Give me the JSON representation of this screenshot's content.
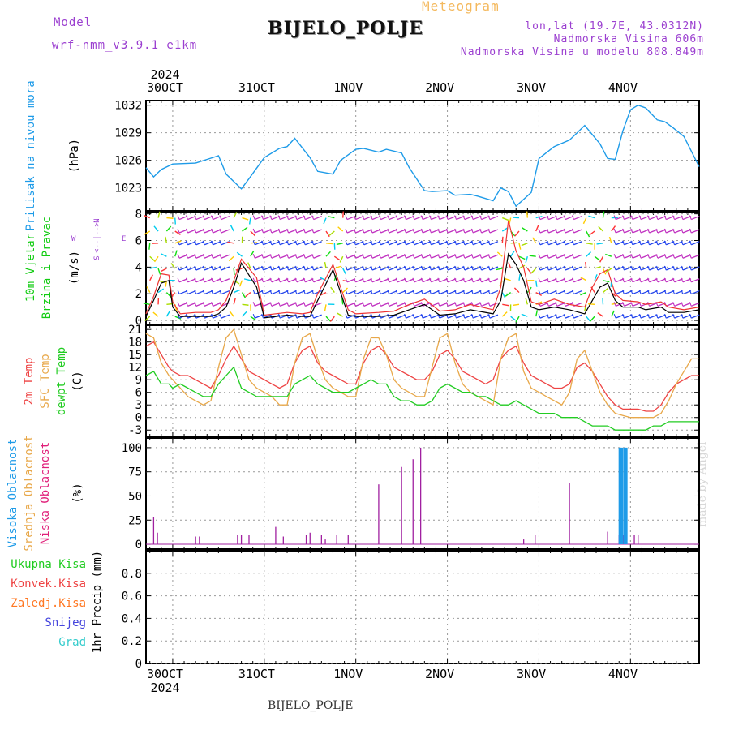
{
  "header": {
    "model_label": "Model",
    "model_name": "wrf-nmm_v3.9.1  e1km",
    "meteogram": "Meteogram",
    "station": "BIJELO_POLJE",
    "lonlat": "lon,lat (19.7E, 43.0312N)",
    "elevation": "Nadmorska Visina 606m",
    "model_elevation": "Nadmorska Visina u modelu 808.849m"
  },
  "footer_station": "BIJELO_POLJE",
  "credit": "made by Angel",
  "time_axis": {
    "year": "2024",
    "labels": [
      "30OCT",
      "31OCT",
      "1NOV",
      "2NOV",
      "3NOV",
      "4NOV"
    ],
    "day_start_hour": [
      0,
      24,
      48,
      72,
      96,
      120
    ],
    "range_hours": [
      -7,
      138
    ]
  },
  "colors": {
    "pressure": "#1e9be8",
    "temp2m": "#ee4444",
    "sfc": "#e8a84a",
    "dewpt": "#22cc22",
    "high_cloud": "#1e9be8",
    "low_cloud": "#a020a0",
    "snow": "#4444dd",
    "grad": "#33cccc",
    "purple": "#9b3fd0"
  },
  "panels": {
    "pressure": {
      "labels": [
        "Pritisak na nivou mora",
        "(hPa)"
      ],
      "ticks": [
        "1023",
        "1026",
        "1029",
        "1032"
      ]
    },
    "wind": {
      "labels": [
        "10m Vjetar",
        "Brzina i Pravac",
        "(m/s)"
      ],
      "compass": [
        "N",
        "W",
        "<--|-->",
        "E",
        "S"
      ],
      "ticks": [
        "0",
        "2",
        "4",
        "6",
        "8"
      ]
    },
    "temp": {
      "labels": [
        "2m Temp",
        "SFC Temp",
        "dewpt Temp",
        "(C)"
      ],
      "ticks": [
        "-3",
        "0",
        "3",
        "6",
        "9",
        "12",
        "15",
        "18",
        "21"
      ]
    },
    "cloud": {
      "labels": [
        "Visoka Oblacnost",
        "Srednja Oblacnost",
        "Niska Oblacnost",
        "(%)"
      ],
      "ticks": [
        "0",
        "25",
        "50",
        "75",
        "100"
      ]
    },
    "precip": {
      "legend": [
        "Ukupna Kisa",
        "Konvek.Kisa",
        "Zaledj.Kisa",
        "Snijeg",
        "Grad"
      ],
      "labels": [
        "1hr Precip",
        "(mm)"
      ],
      "ticks": [
        "0",
        "0.2",
        "0.4",
        "0.6",
        "0.8"
      ]
    }
  },
  "chart_data": [
    {
      "type": "line",
      "title": "Pritisak na nivou mora",
      "ylabel": "(hPa)",
      "ylim": [
        1020.5,
        1032.5
      ],
      "x_hours": [
        -7,
        -5,
        -3,
        0,
        6,
        12,
        14,
        18,
        20,
        24,
        28,
        30,
        32,
        36,
        38,
        42,
        44,
        48,
        50,
        54,
        56,
        60,
        62,
        66,
        68,
        72,
        74,
        78,
        80,
        84,
        86,
        88,
        90,
        94,
        96,
        100,
        104,
        106,
        108,
        112,
        114,
        116,
        118,
        120,
        122,
        124,
        127,
        129,
        131,
        134,
        138
      ],
      "values": [
        1025.2,
        1024.2,
        1025.0,
        1025.6,
        1025.7,
        1026.5,
        1024.5,
        1022.9,
        1024.0,
        1026.3,
        1027.3,
        1027.5,
        1028.4,
        1026.3,
        1024.8,
        1024.5,
        1026.0,
        1027.2,
        1027.3,
        1026.9,
        1027.2,
        1026.8,
        1025.2,
        1022.7,
        1022.6,
        1022.7,
        1022.2,
        1022.3,
        1022.1,
        1021.6,
        1023.0,
        1022.6,
        1021.0,
        1022.5,
        1026.2,
        1027.5,
        1028.2,
        1029.0,
        1029.8,
        1027.8,
        1026.2,
        1026.1,
        1029.2,
        1031.5,
        1032.0,
        1031.7,
        1030.4,
        1030.2,
        1029.6,
        1028.6,
        1025.3
      ]
    },
    {
      "type": "line",
      "title": "10m Vjetar Brzina i Pravac",
      "ylabel": "(m/s)",
      "ylim": [
        -0.3,
        8.1
      ],
      "x_hours": [
        -7,
        -5,
        -3,
        -1,
        0,
        2,
        6,
        10,
        12,
        14,
        16,
        18,
        22,
        24,
        30,
        34,
        36,
        38,
        42,
        46,
        48,
        54,
        58,
        62,
        66,
        70,
        74,
        78,
        84,
        86,
        88,
        90,
        92,
        94,
        96,
        100,
        104,
        108,
        110,
        112,
        114,
        116,
        118,
        122,
        124,
        128,
        130,
        134,
        138
      ],
      "series": [
        {
          "name": "mean",
          "values": [
            0.3,
            1.5,
            2.8,
            3.0,
            1.0,
            0.3,
            0.3,
            0.3,
            0.5,
            1.0,
            2.5,
            4.3,
            2.5,
            0.2,
            0.4,
            0.3,
            0.3,
            1.5,
            3.8,
            0.4,
            0.3,
            0.3,
            0.4,
            0.8,
            1.2,
            0.4,
            0.5,
            0.8,
            0.5,
            1.5,
            5.0,
            4.2,
            3.0,
            1.0,
            0.8,
            1.0,
            0.8,
            0.5,
            1.5,
            2.5,
            2.8,
            1.5,
            1.0,
            1.0,
            0.8,
            1.0,
            0.6,
            0.6,
            0.8
          ]
        },
        {
          "name": "gust",
          "values": [
            0.5,
            1.8,
            3.5,
            3.4,
            1.4,
            0.5,
            0.6,
            0.6,
            0.8,
            1.5,
            3.0,
            4.6,
            3.2,
            0.4,
            0.6,
            0.5,
            0.6,
            2.0,
            4.2,
            0.8,
            0.5,
            0.6,
            0.7,
            1.2,
            1.6,
            0.7,
            0.8,
            1.2,
            0.8,
            2.5,
            7.5,
            5.2,
            4.0,
            1.4,
            1.2,
            1.6,
            1.2,
            1.0,
            2.5,
            3.5,
            3.8,
            2.0,
            1.5,
            1.4,
            1.2,
            1.4,
            1.0,
            0.8,
            1.0
          ]
        }
      ],
      "barb_rows": [
        0.3,
        1.2,
        2.1,
        3.0,
        3.9,
        4.8,
        5.8,
        6.7,
        7.7
      ]
    },
    {
      "type": "line",
      "title": "2m Temp / SFC Temp / dewpt Temp",
      "ylabel": "(C)",
      "ylim": [
        -4.5,
        22
      ],
      "x_hours": [
        -7,
        -5,
        -3,
        -1,
        0,
        2,
        4,
        6,
        8,
        10,
        12,
        14,
        16,
        18,
        20,
        22,
        24,
        26,
        28,
        30,
        32,
        34,
        36,
        38,
        40,
        42,
        44,
        46,
        48,
        50,
        52,
        54,
        56,
        58,
        60,
        62,
        64,
        66,
        68,
        70,
        72,
        74,
        76,
        78,
        80,
        82,
        84,
        86,
        88,
        90,
        92,
        94,
        96,
        98,
        100,
        102,
        104,
        106,
        108,
        110,
        112,
        114,
        116,
        118,
        120,
        122,
        124,
        126,
        128,
        130,
        132,
        134,
        136,
        138
      ],
      "series": [
        {
          "name": "2m Temp",
          "values": [
            17,
            18,
            15,
            12,
            11,
            10,
            10,
            9,
            8,
            7,
            10,
            14,
            17,
            14,
            11,
            10,
            9,
            8,
            7,
            8,
            13,
            16,
            17,
            13,
            11,
            10,
            9,
            8,
            8,
            13,
            16,
            17,
            15,
            12,
            11,
            10,
            9,
            9,
            11,
            15,
            16,
            14,
            11,
            10,
            9,
            8,
            9,
            14,
            16,
            17,
            13,
            10,
            9,
            8,
            7,
            7,
            8,
            12,
            13,
            11,
            8,
            5,
            3,
            2,
            2,
            2,
            1.5,
            1.5,
            3,
            6,
            8,
            9,
            10,
            10
          ]
        },
        {
          "name": "SFC Temp",
          "values": [
            20,
            19,
            13,
            10,
            9,
            7,
            5,
            4,
            3,
            4,
            12,
            19,
            21,
            15,
            9,
            7,
            6,
            5,
            3,
            3,
            13,
            19,
            20,
            14,
            9,
            7,
            6,
            5,
            5,
            14,
            19,
            19,
            15,
            9,
            7,
            6,
            5,
            5,
            12,
            19,
            20,
            13,
            8,
            6,
            5,
            4,
            3,
            14,
            19,
            20,
            11,
            7,
            6,
            5,
            4,
            3,
            6,
            14,
            16,
            11,
            6,
            3,
            1,
            0.5,
            0,
            0,
            0,
            0,
            1,
            4,
            8,
            11,
            14,
            14
          ]
        },
        {
          "name": "dewpt Temp",
          "values": [
            10,
            11,
            8,
            8,
            7,
            8,
            7,
            6,
            5,
            5,
            8,
            10,
            12,
            7,
            6,
            5,
            5,
            5,
            5,
            5,
            8,
            9,
            10,
            8,
            7,
            6,
            6,
            6,
            7,
            8,
            9,
            8,
            8,
            5,
            4,
            4,
            3,
            3,
            4,
            7,
            8,
            7,
            6,
            6,
            5,
            5,
            4,
            3,
            3,
            4,
            3,
            2,
            1,
            1,
            1,
            0,
            0,
            0,
            -1,
            -2,
            -2,
            -2,
            -3,
            -3,
            -3,
            -3,
            -3,
            -2,
            -2,
            -1,
            -1,
            -1,
            -1,
            -1
          ]
        }
      ]
    },
    {
      "type": "bar",
      "title": "Oblacnost",
      "ylabel": "(%)",
      "ylim": [
        -5,
        110
      ],
      "series": [
        {
          "name": "Niska Oblacnost",
          "x_hours": [
            -5,
            -4,
            6,
            7,
            17,
            18,
            20,
            27,
            29,
            35,
            36,
            39,
            40,
            43,
            46,
            54,
            60,
            63,
            65,
            92,
            95,
            104,
            114,
            117,
            118,
            121,
            122
          ],
          "values": [
            28,
            12,
            8,
            8,
            10,
            10,
            10,
            18,
            8,
            10,
            12,
            10,
            5,
            10,
            10,
            62,
            80,
            88,
            100,
            5,
            10,
            63,
            13,
            10,
            10,
            10,
            10
          ]
        },
        {
          "name": "Visoka Oblacnost",
          "x_hours": [
            117.2,
            117.7,
            118.4,
            118.9
          ],
          "values": [
            100,
            100,
            100,
            100
          ]
        }
      ]
    },
    {
      "type": "bar",
      "title": "1hr Precip",
      "ylabel": "(mm)",
      "ylim": [
        0,
        1.0
      ],
      "series": [
        {
          "name": "Ukupna Kisa",
          "values": []
        },
        {
          "name": "Konvek.Kisa",
          "values": []
        },
        {
          "name": "Zaledj.Kisa",
          "values": []
        },
        {
          "name": "Snijeg",
          "values": []
        },
        {
          "name": "Grad",
          "values": []
        }
      ]
    }
  ]
}
